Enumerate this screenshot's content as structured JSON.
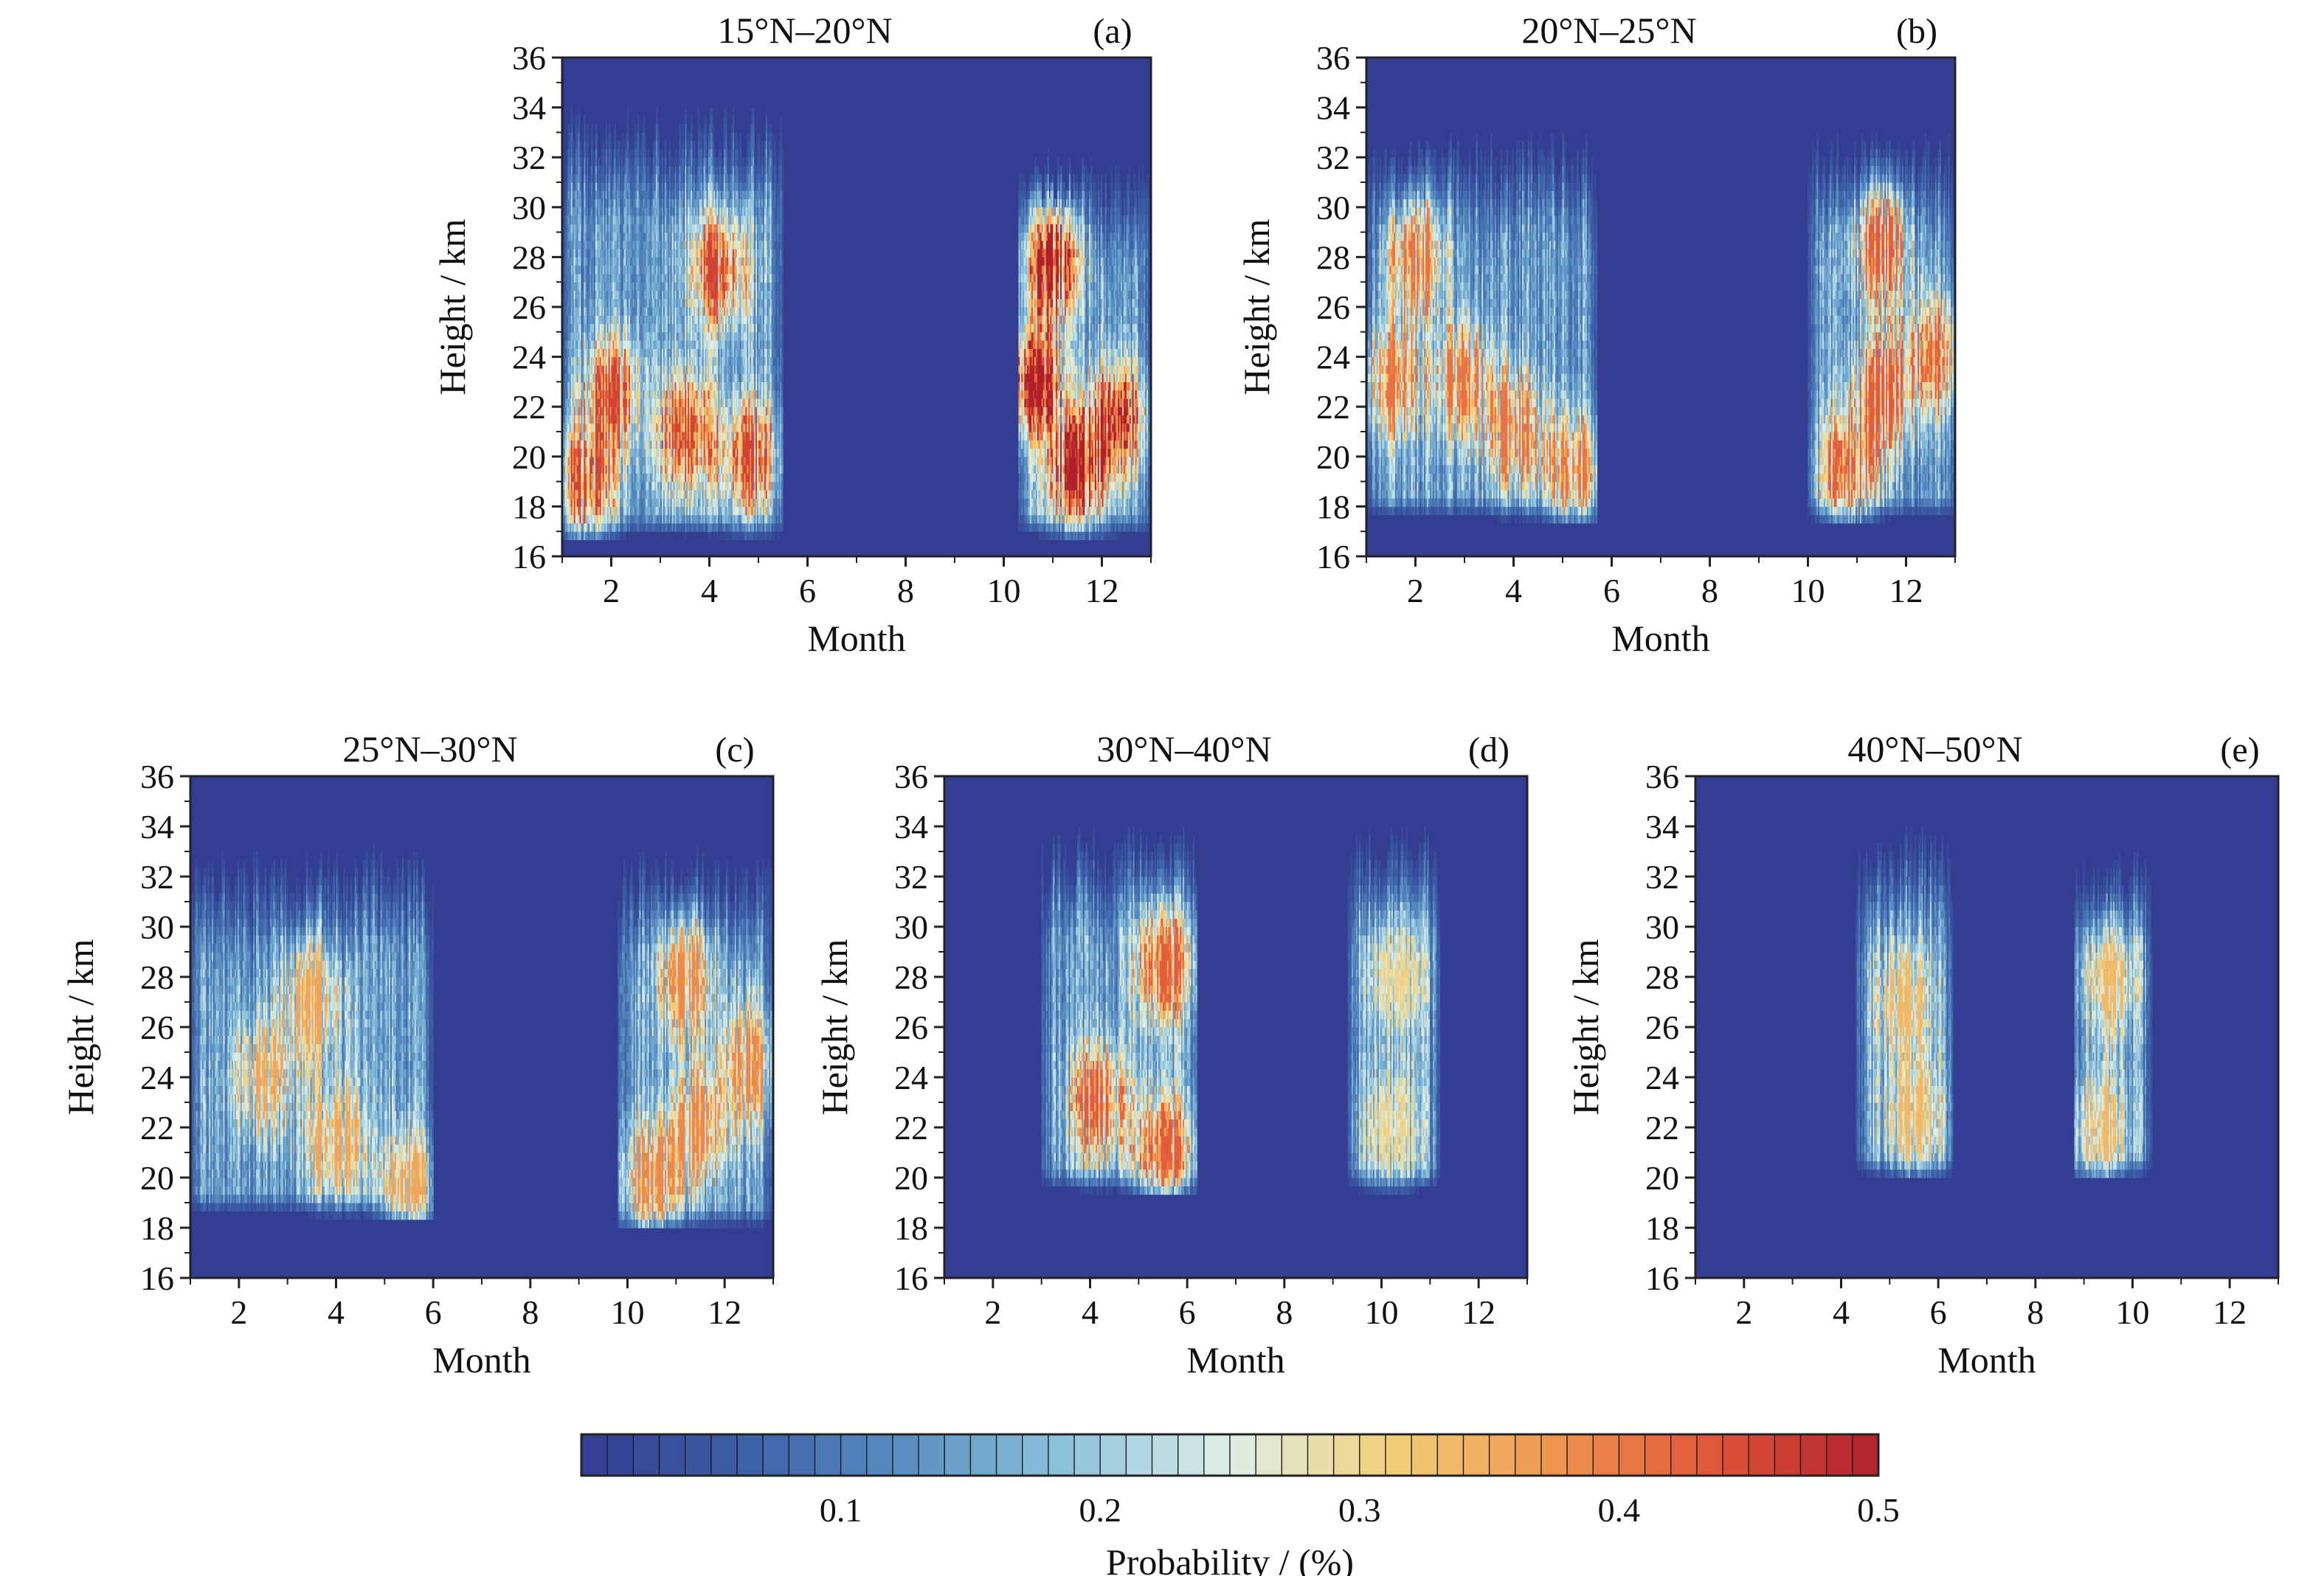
{
  "chart_data": [
    {
      "type": "heatmap",
      "panel": "(a)",
      "title": "15°N–20°N",
      "xlabel": "Month",
      "ylabel": "Height / km",
      "xlim": [
        1,
        13
      ],
      "ylim": [
        16,
        36
      ],
      "x_ticks": [
        2,
        4,
        6,
        8,
        10,
        12
      ],
      "y_ticks": [
        16,
        18,
        20,
        22,
        24,
        26,
        28,
        30,
        32,
        34,
        36
      ],
      "active_periods": [
        {
          "x_start": 1.0,
          "x_end": 5.5,
          "y_base": 16.8,
          "y_top": 33,
          "cores": [
            [
              2.0,
              22.5
            ],
            [
              3.5,
              21.0
            ],
            [
              4.2,
              27.5
            ],
            [
              1.5,
              19.0
            ],
            [
              4.8,
              20.0
            ]
          ],
          "peak_probability": 0.45
        },
        {
          "x_start": 10.3,
          "x_end": 13.0,
          "y_base": 16.8,
          "y_top": 31,
          "cores": [
            [
              10.6,
              23.0
            ],
            [
              11.5,
              19.5
            ],
            [
              12.3,
              21.5
            ],
            [
              11.0,
              28.0
            ]
          ],
          "peak_probability": 0.5
        }
      ]
    },
    {
      "type": "heatmap",
      "panel": "(b)",
      "title": "20°N–25°N",
      "xlabel": "Month",
      "ylabel": "Height / km",
      "xlim": [
        1,
        13
      ],
      "ylim": [
        16,
        36
      ],
      "x_ticks": [
        2,
        4,
        6,
        8,
        10,
        12
      ],
      "y_ticks": [
        16,
        18,
        20,
        22,
        24,
        26,
        28,
        30,
        32,
        34,
        36
      ],
      "active_periods": [
        {
          "x_start": 1.0,
          "x_end": 5.7,
          "y_base": 17.5,
          "y_top": 32,
          "cores": [
            [
              1.5,
              23.0
            ],
            [
              3.0,
              23.0
            ],
            [
              4.0,
              21.0
            ],
            [
              2.0,
              28.0
            ],
            [
              5.2,
              19.5
            ]
          ],
          "peak_probability": 0.4
        },
        {
          "x_start": 10.0,
          "x_end": 13.0,
          "y_base": 17.5,
          "y_top": 32,
          "cores": [
            [
              10.8,
              19.5
            ],
            [
              11.5,
              22.5
            ],
            [
              12.5,
              24.0
            ],
            [
              11.5,
              28.5
            ]
          ],
          "peak_probability": 0.42
        }
      ]
    },
    {
      "type": "heatmap",
      "panel": "(c)",
      "title": "25°N–30°N",
      "xlabel": "Month",
      "ylabel": "Height / km",
      "xlim": [
        1,
        13
      ],
      "ylim": [
        16,
        36
      ],
      "x_ticks": [
        2,
        4,
        6,
        8,
        10,
        12
      ],
      "y_ticks": [
        16,
        18,
        20,
        22,
        24,
        26,
        28,
        30,
        32,
        34,
        36
      ],
      "active_periods": [
        {
          "x_start": 1.0,
          "x_end": 6.0,
          "y_base": 18.5,
          "y_top": 32,
          "cores": [
            [
              2.5,
              24.0
            ],
            [
              4.0,
              21.5
            ],
            [
              5.5,
              19.5
            ],
            [
              3.5,
              27.0
            ]
          ],
          "peak_probability": 0.35
        },
        {
          "x_start": 9.8,
          "x_end": 13.0,
          "y_base": 18.0,
          "y_top": 32,
          "cores": [
            [
              10.5,
              20.0
            ],
            [
              11.5,
              22.0
            ],
            [
              11.2,
              28.0
            ],
            [
              12.5,
              24.5
            ]
          ],
          "peak_probability": 0.38
        }
      ]
    },
    {
      "type": "heatmap",
      "panel": "(d)",
      "title": "30°N–40°N",
      "xlabel": "Month",
      "ylabel": "Height / km",
      "xlim": [
        1,
        13
      ],
      "ylim": [
        16,
        36
      ],
      "x_ticks": [
        2,
        4,
        6,
        8,
        10,
        12
      ],
      "y_ticks": [
        16,
        18,
        20,
        22,
        24,
        26,
        28,
        30,
        32,
        34,
        36
      ],
      "active_periods": [
        {
          "x_start": 3.0,
          "x_end": 6.2,
          "y_base": 19.5,
          "y_top": 33,
          "cores": [
            [
              5.5,
              21.0
            ],
            [
              5.5,
              28.5
            ],
            [
              4.2,
              23.0
            ]
          ],
          "peak_probability": 0.42
        },
        {
          "x_start": 9.3,
          "x_end": 11.2,
          "y_base": 19.5,
          "y_top": 33,
          "cores": [
            [
              10.2,
              22.0
            ],
            [
              10.3,
              28.0
            ]
          ],
          "peak_probability": 0.3
        }
      ]
    },
    {
      "type": "heatmap",
      "panel": "(e)",
      "title": "40°N–50°N",
      "xlabel": "Month",
      "ylabel": "Height / km",
      "xlim": [
        1,
        13
      ],
      "ylim": [
        16,
        36
      ],
      "x_ticks": [
        2,
        4,
        6,
        8,
        10,
        12
      ],
      "y_ticks": [
        16,
        18,
        20,
        22,
        24,
        26,
        28,
        30,
        32,
        34,
        36
      ],
      "active_periods": [
        {
          "x_start": 4.3,
          "x_end": 6.3,
          "y_base": 20.0,
          "y_top": 33,
          "cores": [
            [
              5.5,
              22.5
            ],
            [
              5.3,
              27.0
            ]
          ],
          "peak_probability": 0.33
        },
        {
          "x_start": 8.8,
          "x_end": 10.4,
          "y_base": 20.0,
          "y_top": 32,
          "cores": [
            [
              9.3,
              22.0
            ],
            [
              9.5,
              28.0
            ]
          ],
          "peak_probability": 0.33
        }
      ]
    }
  ],
  "colorbar": {
    "label": "Probability / (%)",
    "min": 0,
    "max": 0.5,
    "levels": 50,
    "ticks": [
      0.1,
      0.2,
      0.3,
      0.4,
      0.5
    ],
    "colors": [
      "#333d91",
      "#3c5fa6",
      "#5a8fc2",
      "#8ec3dc",
      "#ddeee8",
      "#f2cf78",
      "#ee9550",
      "#e05439",
      "#b0202a"
    ]
  }
}
